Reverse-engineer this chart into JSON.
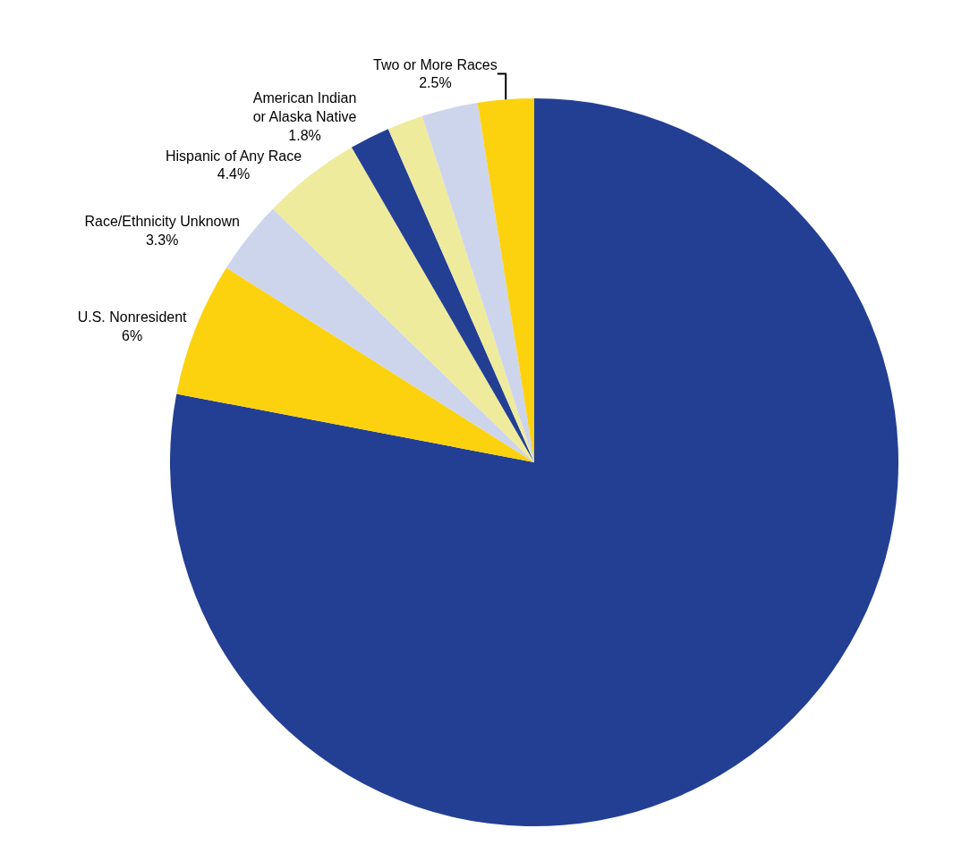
{
  "chart_data": {
    "type": "pie",
    "categories": [
      null,
      "U.S. Nonresident",
      "Race/Ethnicity Unknown",
      "Hispanic of Any Race",
      "American Indian\nor Alaska Native",
      null,
      null,
      "Two or More Races"
    ],
    "values": [
      78.4,
      6,
      3.3,
      4.4,
      1.8,
      1.6,
      2.5,
      2.5
    ],
    "value_labels": [
      null,
      "6%",
      "3.3%",
      "4.4%",
      "1.8%",
      null,
      null,
      "2.5%"
    ],
    "colors": [
      "#233f94",
      "#fcd20f",
      "#cdd5ec",
      "#efeb9d",
      "#233f94",
      "#efeb9d",
      "#cdd5ec",
      "#fcd20f"
    ]
  }
}
